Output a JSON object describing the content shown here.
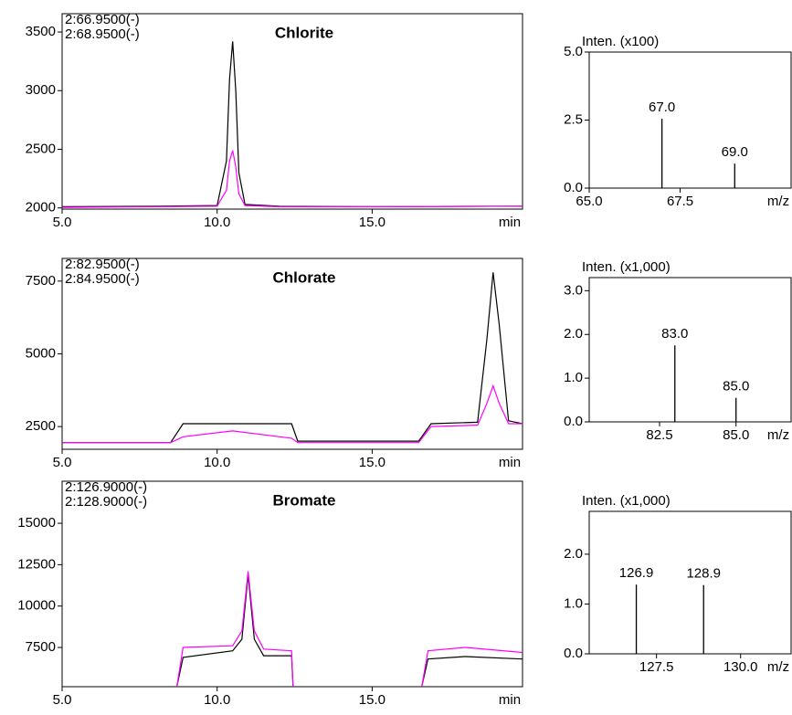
{
  "chart_data": [
    {
      "type": "line",
      "title": "Chlorite",
      "x_label": "min",
      "x": [
        5,
        8,
        10.0,
        10.3,
        10.4,
        10.5,
        10.6,
        10.7,
        10.9,
        12,
        15,
        19.85
      ],
      "series": [
        {
          "name": "2:66.9500(-)",
          "color": "#000000",
          "values": [
            2010,
            2015,
            2020,
            2400,
            3100,
            3420,
            3000,
            2300,
            2030,
            2015,
            2010,
            2015
          ]
        },
        {
          "name": "2:68.9500(-)",
          "color": "#ff00ff",
          "values": [
            2005,
            2010,
            2015,
            2150,
            2400,
            2490,
            2350,
            2120,
            2020,
            2010,
            2010,
            2015
          ]
        }
      ],
      "xlim": [
        5,
        19.85
      ],
      "ylim": [
        1990,
        3656
      ],
      "xticks": [
        {
          "value": 5,
          "label": "5.0"
        },
        {
          "value": 10,
          "label": "10.0"
        },
        {
          "value": 15,
          "label": "15.0"
        }
      ],
      "yticks": [
        2000,
        2500,
        3000,
        3500
      ]
    },
    {
      "type": "line",
      "title": "Chlorate",
      "x_label": "min",
      "x": [
        5,
        8.5,
        8.9,
        10.5,
        12.4,
        12.6,
        16.5,
        16.9,
        18.4,
        18.7,
        18.9,
        19.1,
        19.4,
        19.85
      ],
      "series": [
        {
          "name": "2:82.9500(-)",
          "color": "#000000",
          "values": [
            1950,
            1950,
            2600,
            2600,
            2600,
            2000,
            2000,
            2600,
            2650,
            5500,
            7800,
            6000,
            2700,
            2600
          ]
        },
        {
          "name": "2:84.9500(-)",
          "color": "#ff00ff",
          "values": [
            1950,
            1950,
            2150,
            2350,
            2100,
            1950,
            1950,
            2500,
            2550,
            3300,
            3900,
            3300,
            2600,
            2600
          ]
        }
      ],
      "xlim": [
        5,
        19.85
      ],
      "ylim": [
        1720,
        8280
      ],
      "xticks": [
        {
          "value": 5,
          "label": "5.0"
        },
        {
          "value": 10,
          "label": "10.0"
        },
        {
          "value": 15,
          "label": "15.0"
        }
      ],
      "yticks": [
        2500,
        5000,
        7500
      ]
    },
    {
      "type": "line",
      "title": "Bromate",
      "x_label": "min",
      "x": [
        8.7,
        8.9,
        10.5,
        10.8,
        11.0,
        11.2,
        11.5,
        12.4,
        12.45,
        14.5,
        16.6,
        16.8,
        18,
        19.85
      ],
      "series": [
        {
          "name": "2:126.9000(-)",
          "color": "#000000",
          "values": [
            5130,
            6900,
            7300,
            8000,
            11900,
            8000,
            7000,
            7000,
            5130,
            null,
            5130,
            6800,
            6950,
            6800
          ]
        },
        {
          "name": "2:128.9000(-)",
          "color": "#ff00ff",
          "values": [
            5130,
            7500,
            7600,
            8500,
            12100,
            8500,
            7400,
            7300,
            5130,
            null,
            5130,
            7300,
            7500,
            7200
          ]
        }
      ],
      "xlim": [
        5,
        19.85
      ],
      "ylim": [
        5130,
        17540
      ],
      "xticks": [
        {
          "value": 5,
          "label": "5.0"
        },
        {
          "value": 10,
          "label": "10.0"
        },
        {
          "value": 15,
          "label": "15.0"
        }
      ],
      "yticks": [
        7500,
        10000,
        12500,
        15000
      ]
    },
    {
      "type": "stem",
      "y_label": "Inten. (x100)",
      "x_label": "m/z",
      "color": "#000000",
      "label_color": "#1a1aff",
      "x": [
        67,
        69
      ],
      "x_labels": [
        "67.0",
        "69.0"
      ],
      "values": [
        2.55,
        0.9
      ],
      "xlim": [
        65,
        70.55
      ],
      "ylim": [
        0,
        5
      ],
      "xticks": [
        {
          "value": 65,
          "label": "65.0"
        },
        67.5
      ],
      "yticks": [
        {
          "value": 0,
          "label": "0.0"
        },
        2.5,
        {
          "value": 5,
          "label": "5.0"
        }
      ]
    },
    {
      "type": "stem",
      "y_label": "Inten. (x1,000)",
      "x_label": "m/z",
      "color": "#000000",
      "label_color": "#1a1aff",
      "x": [
        83,
        85
      ],
      "x_labels": [
        "83.0",
        "85.0"
      ],
      "values": [
        1.75,
        0.55
      ],
      "xlim": [
        80.2,
        86.8
      ],
      "ylim": [
        0,
        3.3
      ],
      "xticks": [
        82.5,
        {
          "value": 85,
          "label": "85.0"
        }
      ],
      "yticks": [
        {
          "value": 0,
          "label": "0.0"
        },
        {
          "value": 1,
          "label": "1.0"
        },
        {
          "value": 2,
          "label": "2.0"
        },
        {
          "value": 3,
          "label": "3.0"
        }
      ]
    },
    {
      "type": "stem",
      "y_label": "Inten. (x1,000)",
      "x_label": "m/z",
      "color": "#000000",
      "label_color": "#1a1aff",
      "x": [
        126.9,
        128.9
      ],
      "x_labels": [
        "126.9",
        "128.9"
      ],
      "values": [
        1.39,
        1.38
      ],
      "xlim": [
        125.5,
        131.5
      ],
      "ylim": [
        0,
        2.86
      ],
      "xticks": [
        127.5,
        {
          "value": 130,
          "label": "130.0"
        }
      ],
      "yticks": [
        {
          "value": 0,
          "label": "0.0"
        },
        {
          "value": 1,
          "label": "1.0"
        },
        {
          "value": 2,
          "label": "2.0"
        }
      ]
    }
  ]
}
